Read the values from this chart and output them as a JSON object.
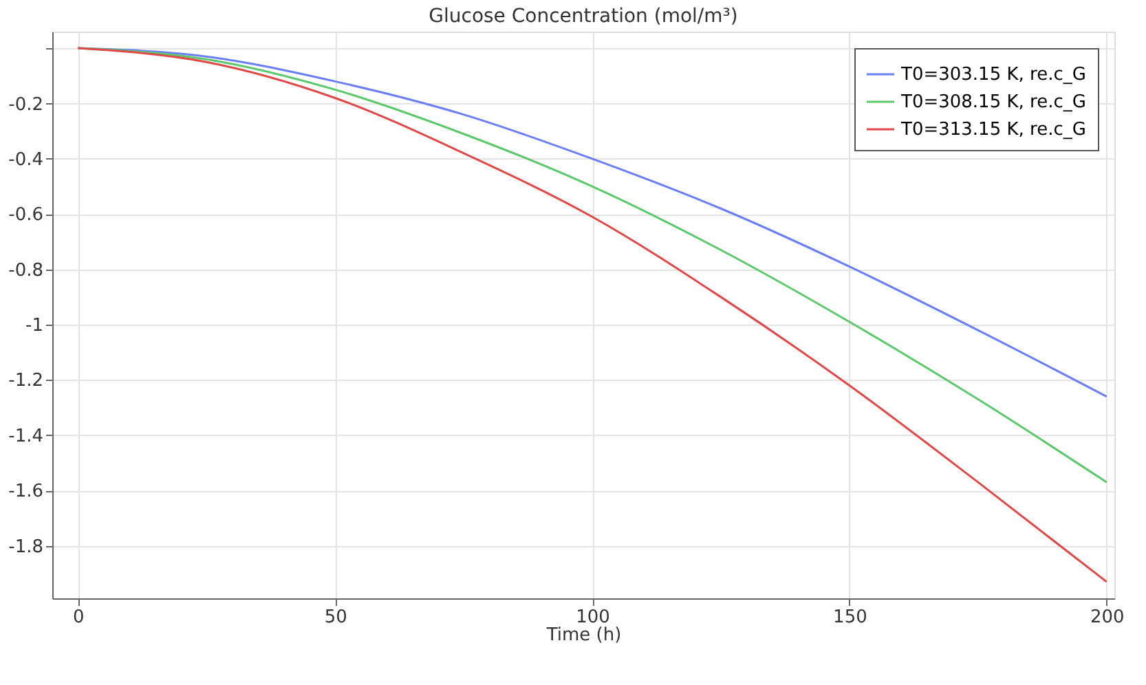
{
  "chart_data": {
    "type": "line",
    "title": "Glucose Concentration (mol/m³)",
    "xlabel": "Time (h)",
    "x": [
      0,
      25,
      50,
      75,
      100,
      125,
      150,
      175,
      200
    ],
    "series": [
      {
        "name": "T0=303.15 K, re.c_G",
        "color": "#6a7ff5",
        "values": [
          0,
          -0.03,
          -0.12,
          -0.24,
          -0.4,
          -0.58,
          -0.79,
          -1.02,
          -1.26
        ]
      },
      {
        "name": "T0=308.15 K, re.c_G",
        "color": "#5cc86c",
        "values": [
          0,
          -0.04,
          -0.15,
          -0.31,
          -0.5,
          -0.73,
          -0.99,
          -1.27,
          -1.57
        ]
      },
      {
        "name": "T0=313.15 K, re.c_G",
        "color": "#e04848",
        "values": [
          0,
          -0.05,
          -0.18,
          -0.38,
          -0.61,
          -0.9,
          -1.22,
          -1.57,
          -1.93
        ]
      }
    ],
    "xlim": [
      -5,
      201.5
    ],
    "xticks": [
      0,
      50,
      100,
      150,
      200
    ],
    "ylim": [
      -1.99,
      0.06
    ],
    "yticks": [
      {
        "value": 0,
        "label": null
      },
      -0.2,
      -0.4,
      -0.6,
      -0.8,
      -1,
      -1.2,
      -1.4,
      -1.6,
      -1.8
    ],
    "grid": true,
    "legend": "top right",
    "marker": "none",
    "line_style": "solid"
  }
}
